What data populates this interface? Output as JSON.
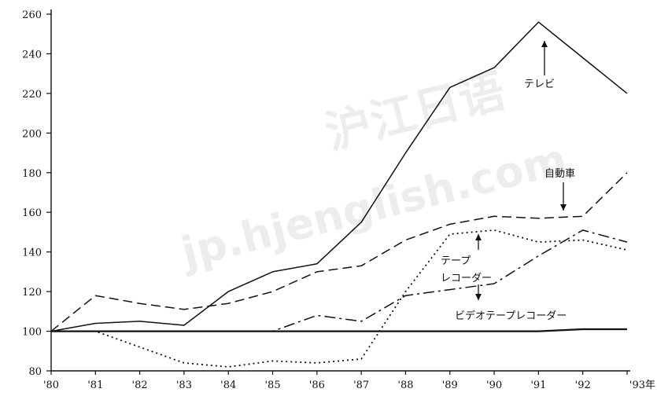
{
  "chart_data": {
    "type": "line",
    "x": [
      "'80",
      "'81",
      "'82",
      "'83",
      "'84",
      "'85",
      "'86",
      "'87",
      "'88",
      "'89",
      "'90",
      "'91",
      "'92",
      "'93年"
    ],
    "ylim": [
      80,
      260
    ],
    "yticks": [
      80,
      100,
      120,
      140,
      160,
      180,
      200,
      220,
      240,
      260
    ],
    "xlabel": "",
    "ylabel": "",
    "grid": false,
    "series": [
      {
        "name": "テレビ",
        "style": "solid",
        "values": [
          100,
          104,
          105,
          103,
          120,
          130,
          134,
          155,
          190,
          223,
          233,
          256,
          238,
          220
        ]
      },
      {
        "name": "自動車",
        "style": "dashed",
        "values": [
          100,
          118,
          114,
          111,
          114,
          120,
          130,
          133,
          146,
          154,
          158,
          157,
          158,
          180
        ]
      },
      {
        "name": "テープレコーダー",
        "style": "dotted",
        "values": [
          100,
          100,
          92,
          84,
          82,
          85,
          84,
          86,
          120,
          149,
          151,
          145,
          146,
          141
        ]
      },
      {
        "name": "ビデオテープレコーダー",
        "style": "dashdot",
        "values": [
          100,
          100,
          100,
          100,
          100,
          100,
          108,
          105,
          118,
          121,
          124,
          138,
          151,
          145
        ]
      },
      {
        "name": "",
        "style": "flat",
        "values": [
          100,
          100,
          100,
          100,
          100,
          100,
          100,
          100,
          100,
          100,
          100,
          100,
          101,
          101
        ]
      }
    ],
    "annotations": [
      {
        "text": "テレビ",
        "series": "テレビ"
      },
      {
        "text": "自動車",
        "series": "自動車"
      },
      {
        "text": "テープ",
        "series": "テープレコーダー"
      },
      {
        "text": "レコーダー",
        "series": "テープレコーダー"
      },
      {
        "text": "ビデオテープレコーダー",
        "series": "ビデオテープレコーダー"
      }
    ]
  },
  "watermark": {
    "line1": "沪江日语",
    "line2": "jp.hjenglish.com"
  },
  "colors": {
    "line": "#111111",
    "axis": "#111111",
    "watermark": "#d9d9d9"
  }
}
